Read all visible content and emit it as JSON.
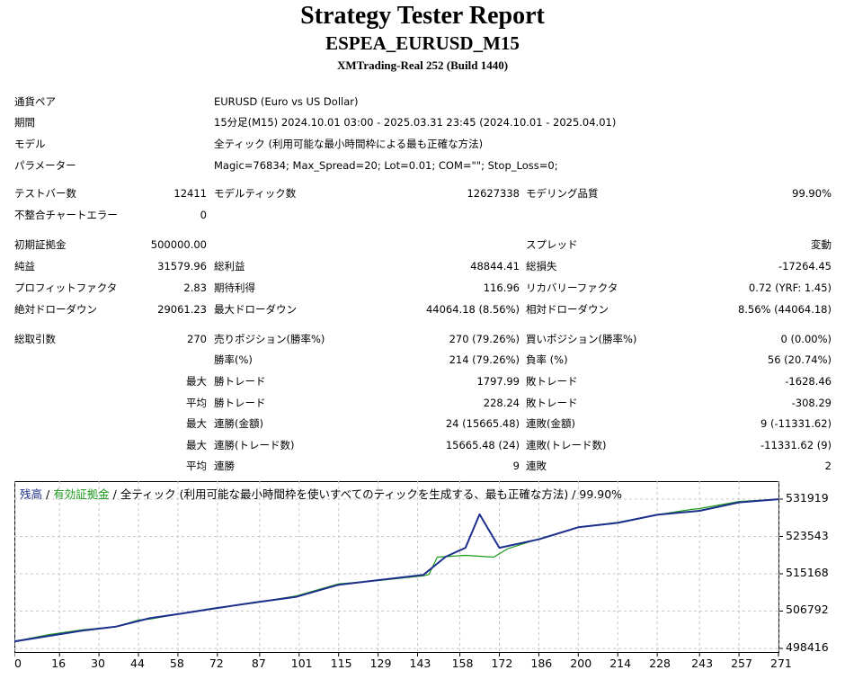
{
  "header": {
    "title": "Strategy Tester Report",
    "subtitle": "ESPEA_EURUSD_M15",
    "server": "XMTrading-Real 252 (Build 1440)"
  },
  "info": [
    {
      "label": "通貨ペア",
      "value": "EURUSD (Euro vs US Dollar)"
    },
    {
      "label": "期間",
      "value": "15分足(M15) 2024.10.01 03:00 - 2025.03.31 23:45 (2024.10.01 - 2025.04.01)"
    },
    {
      "label": "モデル",
      "value": "全ティック (利用可能な最小時間枠による最も正確な方法)"
    },
    {
      "label": "パラメーター",
      "value": "Magic=76834; Max_Spread=20; Lot=0.01; COM=\"\"; Stop_Loss=0;"
    }
  ],
  "stats1": {
    "bars_label": "テストバー数",
    "bars": "12411",
    "ticks_label": "モデルティック数",
    "ticks": "12627338",
    "quality_label": "モデリング品質",
    "quality": "99.90%",
    "errors_label": "不整合チャートエラー",
    "errors": "0"
  },
  "stats2": {
    "deposit_label": "初期証拠金",
    "deposit": "500000.00",
    "spread_label": "スプレッド",
    "spread": "変動",
    "net_label": "純益",
    "net": "31579.96",
    "gross_profit_label": "総利益",
    "gross_profit": "48844.41",
    "gross_loss_label": "総損失",
    "gross_loss": "-17264.45",
    "pf_label": "プロフィットファクタ",
    "pf": "2.83",
    "expected_label": "期待利得",
    "expected": "116.96",
    "recovery_label": "リカバリーファクタ",
    "recovery": "0.72 (YRF: 1.45)",
    "abs_dd_label": "絶対ドローダウン",
    "abs_dd": "29061.23",
    "max_dd_label": "最大ドローダウン",
    "max_dd": "44064.18 (8.56%)",
    "rel_dd_label": "相対ドローダウン",
    "rel_dd": "8.56% (44064.18)"
  },
  "stats3": {
    "total_label": "総取引数",
    "total": "270",
    "short_label": "売りポジション(勝率%)",
    "short": "270 (79.26%)",
    "long_label": "買いポジション(勝率%)",
    "long": "0 (0.00%)",
    "win_label": "勝率(%)",
    "win": "214 (79.26%)",
    "loss_label": "負率 (%)",
    "loss": "56 (20.74%)",
    "max_word": "最大",
    "avg_word": "平均",
    "largest_win_label": "勝トレード",
    "largest_win": "1797.99",
    "largest_loss_label": "敗トレード",
    "largest_loss": "-1628.46",
    "avg_win_label": "勝トレード",
    "avg_win": "228.24",
    "avg_loss_label": "敗トレード",
    "avg_loss": "-308.29",
    "max_cons_wins_money_label": "連勝(金額)",
    "max_cons_wins_money": "24 (15665.48)",
    "max_cons_losses_money_label": "連敗(金額)",
    "max_cons_losses_money": "9 (-11331.62)",
    "max_cons_wins_count_label": "連勝(トレード数)",
    "max_cons_wins_count": "15665.48 (24)",
    "max_cons_losses_count_label": "連敗(トレード数)",
    "max_cons_losses_count": "-11331.62 (9)",
    "avg_cons_wins_label": "連勝",
    "avg_cons_wins": "9",
    "avg_cons_losses_label": "連敗",
    "avg_cons_losses": "2"
  },
  "chart_legend": {
    "balance": "残高",
    "sep1": " / ",
    "equity": "有効証拠金",
    "sep2": " / 全ティック (利用可能な最小時間枠を使いすべてのティックを生成する、最も正確な方法) / 99.90%"
  },
  "chart_data": {
    "type": "line",
    "colors": {
      "balance": "#1c2f8c",
      "equity": "#1a9a1a",
      "grid": "#c8c8c8"
    },
    "x_ticks": [
      "0",
      "16",
      "30",
      "44",
      "58",
      "72",
      "87",
      "101",
      "115",
      "129",
      "143",
      "158",
      "172",
      "186",
      "200",
      "214",
      "228",
      "243",
      "257",
      "271"
    ],
    "y_ticks": [
      "531919",
      "523543",
      "515168",
      "506792",
      "498416"
    ],
    "xlim": [
      0,
      271
    ],
    "ylim": [
      498416,
      531919
    ],
    "grid": true,
    "series": [
      {
        "name": "残高",
        "x": [
          0,
          12,
          24,
          36,
          48,
          58,
          70,
          85,
          100,
          115,
          130,
          145,
          153,
          160,
          165,
          172,
          186,
          200,
          214,
          228,
          243,
          257,
          271
        ],
        "y": [
          500000,
          501200,
          502400,
          503300,
          505200,
          506100,
          507300,
          508700,
          510000,
          512700,
          513800,
          514900,
          519000,
          521000,
          528500,
          521000,
          522900,
          525600,
          526600,
          528400,
          529300,
          531200,
          531900
        ]
      },
      {
        "name": "有効証拠金",
        "x": [
          0,
          12,
          24,
          36,
          44,
          48,
          58,
          70,
          85,
          100,
          115,
          130,
          145,
          147,
          150,
          155,
          160,
          165,
          170,
          175,
          185,
          200,
          214,
          228,
          240,
          243,
          257,
          271
        ],
        "y": [
          500000,
          501500,
          502600,
          503300,
          504800,
          505000,
          506100,
          507400,
          508600,
          510200,
          512900,
          513700,
          514700,
          515000,
          518900,
          519100,
          519300,
          519100,
          518900,
          520800,
          522800,
          525600,
          526700,
          528400,
          529600,
          529800,
          531400,
          531900
        ]
      }
    ]
  }
}
